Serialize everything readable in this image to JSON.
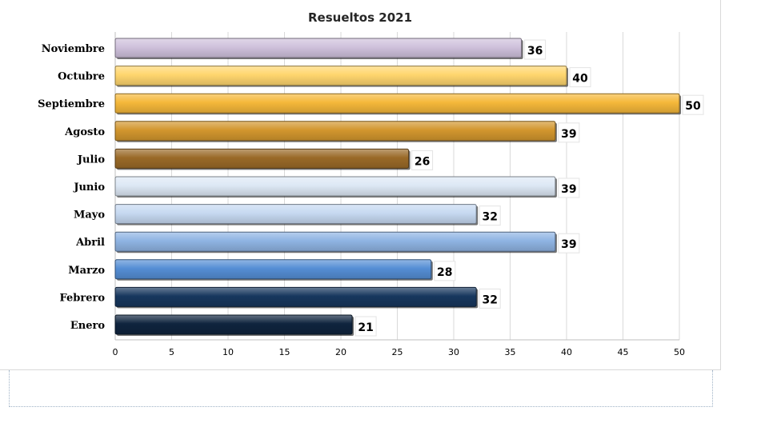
{
  "chart_data": {
    "type": "bar",
    "orientation": "horizontal",
    "title": "Resueltos 2021",
    "categories": [
      "Noviembre",
      "Octubre",
      "Septiembre",
      "Agosto",
      "Julio",
      "Junio",
      "Mayo",
      "Abril",
      "Marzo",
      "Febrero",
      "Enero"
    ],
    "values": [
      36,
      40,
      50,
      39,
      26,
      39,
      32,
      39,
      28,
      32,
      21
    ],
    "data_labels": [
      "36",
      "40",
      "50",
      "39",
      "26",
      "39",
      "32",
      "39",
      "28",
      "32",
      "21"
    ],
    "colors": [
      "#cfc1dc",
      "#ffd66e",
      "#f5b83a",
      "#d2962e",
      "#9a6a28",
      "#dde8f5",
      "#c6d9f1",
      "#8fb4e3",
      "#558ed5",
      "#17375e",
      "#0f243e"
    ],
    "xlim": [
      0,
      50
    ],
    "xticks": [
      "0",
      "5",
      "10",
      "15",
      "20",
      "25",
      "30",
      "35",
      "40",
      "45",
      "50"
    ],
    "xlabel": "",
    "ylabel": "",
    "grid": true,
    "legend": "none"
  }
}
